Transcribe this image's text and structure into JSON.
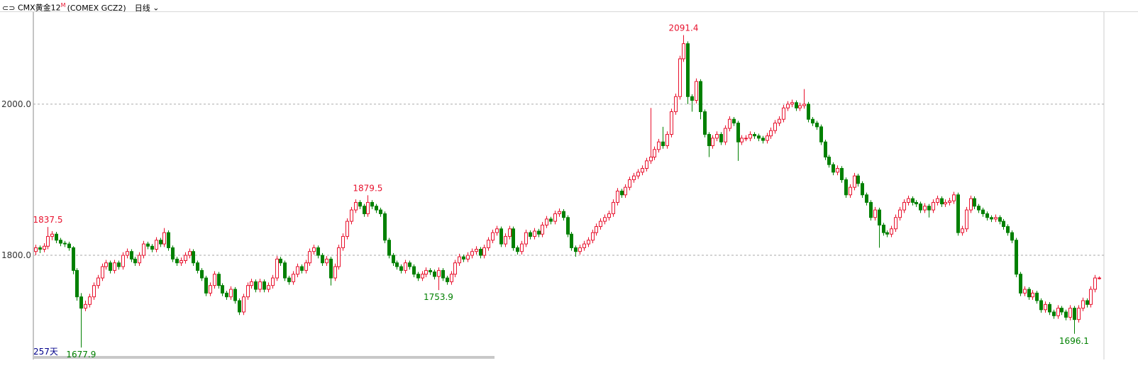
{
  "chart_data": {
    "type": "candlestick",
    "title": "CMX黄金12",
    "title_superscript": "M",
    "subtitle": "(COMEX GCZ2)",
    "period": "日线",
    "count_label": "257天",
    "up_color": "#e8112d",
    "down_color": "#008000",
    "grid": true,
    "ylim": [
      1664,
      2120
    ],
    "yticks": [
      {
        "value": 1800,
        "label": "1800.0"
      },
      {
        "value": 2000,
        "label": "2000.0"
      }
    ],
    "open": [
      1805,
      1810,
      1808,
      1812,
      1825,
      1828,
      1820,
      1816,
      1815,
      1810,
      1780,
      1745,
      1730,
      1735,
      1745,
      1760,
      1770,
      1785,
      1790,
      1780,
      1790,
      1785,
      1800,
      1805,
      1795,
      1790,
      1800,
      1815,
      1812,
      1808,
      1820,
      1815,
      1830,
      1810,
      1795,
      1790,
      1793,
      1800,
      1805,
      1790,
      1780,
      1770,
      1750,
      1760,
      1775,
      1760,
      1750,
      1745,
      1755,
      1740,
      1725,
      1745,
      1760,
      1765,
      1755,
      1765,
      1755,
      1760,
      1770,
      1795,
      1790,
      1770,
      1765,
      1775,
      1785,
      1780,
      1790,
      1805,
      1810,
      1800,
      1790,
      1795,
      1770,
      1785,
      1810,
      1825,
      1845,
      1860,
      1870,
      1865,
      1855,
      1870,
      1865,
      1860,
      1855,
      1820,
      1800,
      1790,
      1785,
      1780,
      1790,
      1785,
      1775,
      1770,
      1775,
      1780,
      1778,
      1772,
      1780,
      1770,
      1765,
      1775,
      1790,
      1798,
      1795,
      1800,
      1805,
      1808,
      1800,
      1810,
      1820,
      1830,
      1835,
      1815,
      1825,
      1835,
      1810,
      1805,
      1815,
      1830,
      1825,
      1832,
      1828,
      1840,
      1848,
      1845,
      1855,
      1858,
      1850,
      1828,
      1810,
      1805,
      1810,
      1815,
      1820,
      1830,
      1838,
      1845,
      1850,
      1855,
      1870,
      1885,
      1880,
      1890,
      1900,
      1905,
      1910,
      1915,
      1925,
      1930,
      1940,
      1950,
      1945,
      1960,
      1990,
      2010,
      2060,
      2080,
      2010,
      2005,
      2030,
      1990,
      1960,
      1945,
      1955,
      1960,
      1950,
      1968,
      1980,
      1975,
      1950,
      1955,
      1955,
      1960,
      1958,
      1955,
      1952,
      1958,
      1965,
      1975,
      1980,
      1995,
      2000,
      2002,
      1995,
      1998,
      2000,
      1980,
      1975,
      1970,
      1950,
      1930,
      1920,
      1910,
      1915,
      1900,
      1880,
      1890,
      1905,
      1895,
      1880,
      1870,
      1850,
      1860,
      1840,
      1830,
      1828,
      1835,
      1850,
      1860,
      1870,
      1875,
      1870,
      1868,
      1860,
      1865,
      1860,
      1870,
      1875,
      1868,
      1870,
      1872,
      1880,
      1830,
      1835,
      1860,
      1875,
      1865,
      1860,
      1855,
      1850,
      1848,
      1850,
      1845,
      1838,
      1830,
      1820,
      1775,
      1750,
      1755,
      1745,
      1750,
      1740,
      1728,
      1735,
      1725,
      1720,
      1730,
      1725,
      1718,
      1730,
      1715,
      1730,
      1740,
      1735,
      1755,
      1770
    ],
    "high": [
      1814,
      1813,
      1816,
      1837.5,
      1832,
      1831,
      1823,
      1819,
      1818,
      1812,
      1783,
      1750,
      1740,
      1749,
      1764,
      1774,
      1789,
      1794,
      1793,
      1794,
      1793,
      1804,
      1809,
      1808,
      1798,
      1804,
      1819,
      1818,
      1815,
      1824,
      1823,
      1836,
      1833,
      1813,
      1798,
      1797,
      1804,
      1809,
      1808,
      1793,
      1783,
      1773,
      1764,
      1779,
      1778,
      1763,
      1753,
      1759,
      1758,
      1743,
      1749,
      1764,
      1769,
      1768,
      1769,
      1768,
      1764,
      1774,
      1799,
      1798,
      1793,
      1773,
      1779,
      1789,
      1788,
      1794,
      1809,
      1814,
      1813,
      1803,
      1799,
      1798,
      1789,
      1814,
      1829,
      1849,
      1864,
      1874,
      1873,
      1868,
      1879.5,
      1873,
      1868,
      1863,
      1858,
      1823,
      1803,
      1793,
      1788,
      1794,
      1793,
      1788,
      1778,
      1779,
      1784,
      1783,
      1781,
      1784,
      1783,
      1773,
      1779,
      1794,
      1802,
      1801,
      1804,
      1809,
      1812,
      1811,
      1814,
      1824,
      1834,
      1839,
      1838,
      1829,
      1839,
      1838,
      1813,
      1819,
      1834,
      1833,
      1836,
      1835,
      1844,
      1852,
      1851,
      1859,
      1862,
      1861,
      1853,
      1831,
      1813,
      1814,
      1819,
      1824,
      1834,
      1842,
      1849,
      1854,
      1859,
      1874,
      1889,
      1888,
      1894,
      1904,
      1909,
      1914,
      1919,
      1929,
      1995,
      1944,
      1954,
      1970,
      1964,
      1994,
      2014,
      2064,
      2091.4,
      2083,
      2013,
      2034,
      2033,
      1993,
      1963,
      1959,
      1964,
      1963,
      1972,
      1984,
      1983,
      1978,
      1959,
      1959,
      1964,
      1963,
      1961,
      1958,
      1962,
      1969,
      1979,
      1984,
      1999,
      2004,
      2006,
      2005,
      2002,
      2020,
      2003,
      1983,
      1978,
      1973,
      1953,
      1933,
      1923,
      1919,
      1918,
      1903,
      1894,
      1909,
      1908,
      1898,
      1883,
      1873,
      1864,
      1863,
      1843,
      1833,
      1839,
      1854,
      1864,
      1874,
      1879,
      1878,
      1873,
      1871,
      1869,
      1868,
      1874,
      1879,
      1878,
      1874,
      1876,
      1884,
      1883,
      1839,
      1864,
      1879,
      1878,
      1868,
      1863,
      1858,
      1853,
      1854,
      1853,
      1848,
      1841,
      1833,
      1823,
      1778,
      1759,
      1758,
      1754,
      1753,
      1743,
      1739,
      1738,
      1728,
      1734,
      1733,
      1728,
      1734,
      1733,
      1734,
      1744,
      1743,
      1759,
      1774,
      1772
    ],
    "low": [
      1800,
      1803,
      1804,
      1808,
      1820,
      1816,
      1812,
      1811,
      1806,
      1775,
      1740,
      1677.9,
      1726,
      1731,
      1741,
      1756,
      1766,
      1781,
      1776,
      1776,
      1781,
      1781,
      1796,
      1791,
      1786,
      1786,
      1796,
      1808,
      1804,
      1804,
      1811,
      1811,
      1806,
      1791,
      1786,
      1786,
      1789,
      1796,
      1786,
      1776,
      1766,
      1746,
      1746,
      1756,
      1756,
      1746,
      1741,
      1741,
      1736,
      1721,
      1721,
      1741,
      1756,
      1751,
      1751,
      1751,
      1751,
      1756,
      1766,
      1786,
      1766,
      1761,
      1761,
      1771,
      1776,
      1776,
      1786,
      1801,
      1796,
      1786,
      1786,
      1760,
      1766,
      1781,
      1806,
      1821,
      1841,
      1856,
      1861,
      1851,
      1851,
      1861,
      1856,
      1851,
      1816,
      1796,
      1786,
      1781,
      1776,
      1776,
      1781,
      1771,
      1766,
      1766,
      1771,
      1774,
      1768,
      1753.9,
      1766,
      1761,
      1761,
      1771,
      1786,
      1791,
      1791,
      1796,
      1801,
      1796,
      1796,
      1806,
      1816,
      1826,
      1811,
      1811,
      1821,
      1806,
      1801,
      1801,
      1811,
      1821,
      1821,
      1824,
      1824,
      1836,
      1841,
      1841,
      1851,
      1846,
      1824,
      1806,
      1798,
      1801,
      1806,
      1811,
      1816,
      1826,
      1834,
      1841,
      1846,
      1851,
      1866,
      1876,
      1876,
      1886,
      1896,
      1901,
      1906,
      1911,
      1921,
      1926,
      1936,
      1941,
      1941,
      1956,
      1986,
      2006,
      2056,
      2000,
      1990,
      2001,
      1980,
      1956,
      1930,
      1941,
      1951,
      1946,
      1946,
      1964,
      1971,
      1925,
      1946,
      1951,
      1951,
      1954,
      1951,
      1948,
      1948,
      1954,
      1961,
      1971,
      1976,
      1991,
      1996,
      1991,
      1991,
      1994,
      1976,
      1971,
      1966,
      1946,
      1926,
      1916,
      1906,
      1906,
      1896,
      1876,
      1876,
      1886,
      1891,
      1876,
      1866,
      1846,
      1846,
      1810,
      1826,
      1824,
      1824,
      1831,
      1846,
      1856,
      1866,
      1866,
      1864,
      1856,
      1856,
      1850,
      1856,
      1866,
      1864,
      1864,
      1866,
      1868,
      1826,
      1826,
      1831,
      1856,
      1861,
      1856,
      1851,
      1846,
      1844,
      1844,
      1841,
      1834,
      1826,
      1816,
      1771,
      1746,
      1746,
      1741,
      1741,
      1736,
      1724,
      1724,
      1721,
      1716,
      1716,
      1721,
      1714,
      1714,
      1696.1,
      1711,
      1726,
      1731,
      1731,
      1751,
      1768
    ],
    "close": [
      1810,
      1808,
      1812,
      1825,
      1828,
      1820,
      1816,
      1815,
      1810,
      1780,
      1745,
      1730,
      1735,
      1745,
      1760,
      1770,
      1785,
      1790,
      1780,
      1790,
      1785,
      1800,
      1805,
      1795,
      1790,
      1800,
      1815,
      1812,
      1808,
      1820,
      1815,
      1830,
      1810,
      1795,
      1790,
      1793,
      1800,
      1805,
      1790,
      1780,
      1770,
      1750,
      1760,
      1775,
      1760,
      1750,
      1745,
      1755,
      1740,
      1725,
      1745,
      1760,
      1765,
      1755,
      1765,
      1755,
      1760,
      1770,
      1795,
      1790,
      1770,
      1765,
      1775,
      1785,
      1780,
      1790,
      1805,
      1810,
      1800,
      1790,
      1795,
      1770,
      1785,
      1810,
      1825,
      1845,
      1860,
      1870,
      1865,
      1855,
      1870,
      1865,
      1860,
      1855,
      1820,
      1800,
      1790,
      1785,
      1780,
      1790,
      1785,
      1775,
      1770,
      1775,
      1780,
      1778,
      1772,
      1780,
      1770,
      1765,
      1775,
      1790,
      1798,
      1795,
      1800,
      1805,
      1808,
      1800,
      1810,
      1820,
      1830,
      1835,
      1815,
      1825,
      1835,
      1810,
      1805,
      1815,
      1830,
      1825,
      1832,
      1828,
      1840,
      1848,
      1845,
      1855,
      1858,
      1850,
      1828,
      1810,
      1805,
      1810,
      1815,
      1820,
      1830,
      1838,
      1845,
      1850,
      1855,
      1870,
      1885,
      1880,
      1890,
      1900,
      1905,
      1910,
      1915,
      1925,
      1930,
      1940,
      1950,
      1945,
      1960,
      1990,
      2010,
      2060,
      2080,
      2010,
      2005,
      2030,
      1990,
      1960,
      1945,
      1955,
      1960,
      1950,
      1968,
      1980,
      1975,
      1950,
      1955,
      1955,
      1960,
      1958,
      1955,
      1952,
      1958,
      1965,
      1975,
      1980,
      1995,
      2000,
      2002,
      1995,
      1998,
      2000,
      1980,
      1975,
      1970,
      1950,
      1930,
      1920,
      1910,
      1915,
      1900,
      1880,
      1890,
      1905,
      1895,
      1880,
      1870,
      1850,
      1860,
      1840,
      1830,
      1828,
      1835,
      1850,
      1860,
      1870,
      1875,
      1870,
      1868,
      1860,
      1865,
      1860,
      1870,
      1875,
      1868,
      1870,
      1872,
      1880,
      1830,
      1835,
      1860,
      1875,
      1865,
      1860,
      1855,
      1850,
      1848,
      1850,
      1845,
      1838,
      1830,
      1820,
      1775,
      1750,
      1755,
      1745,
      1750,
      1740,
      1728,
      1735,
      1725,
      1720,
      1730,
      1725,
      1718,
      1730,
      1715,
      1730,
      1740,
      1735,
      1755,
      1770,
      1770
    ]
  }
}
